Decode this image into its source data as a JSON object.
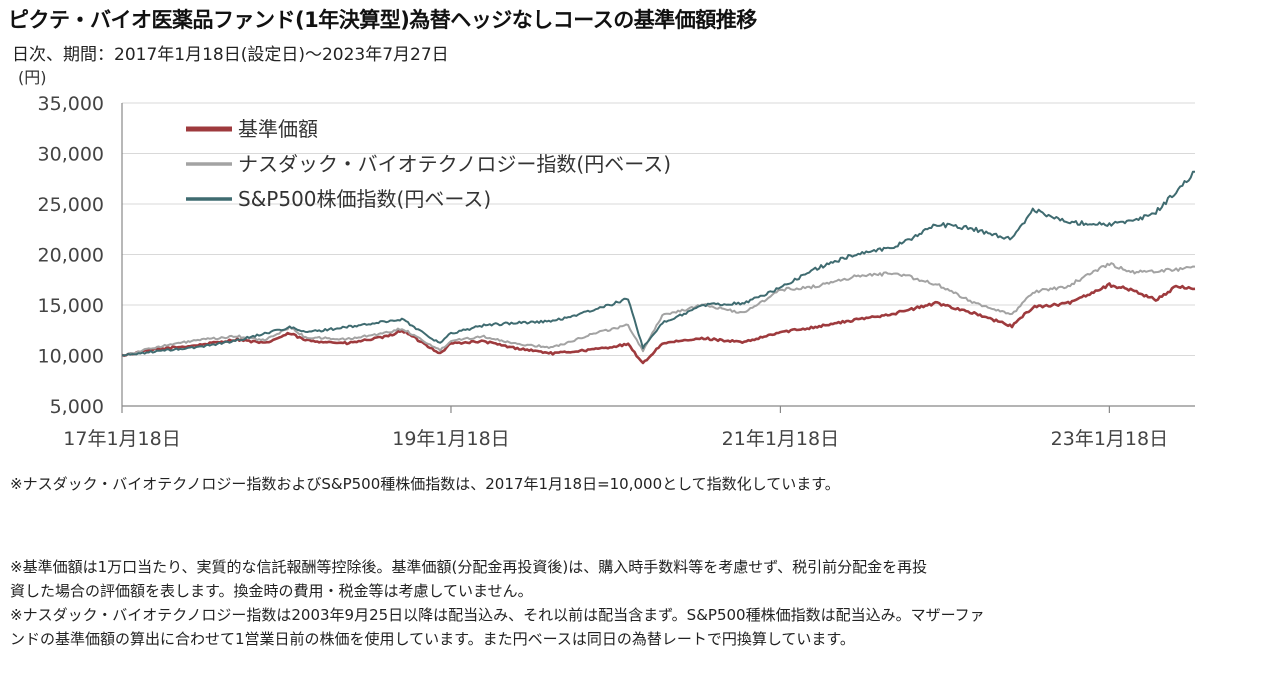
{
  "chart_data": {
    "type": "line",
    "title": "ピクテ・バイオ医薬品ファンド(1年決算型)為替ヘッジなしコースの基準価額推移",
    "subtitle": "日次、期間：2017年1月18日(設定日)～2023年7月27日",
    "ylabel": "(円)",
    "ylim": [
      5000,
      35000
    ],
    "xlim": [
      "2017-01-18",
      "2023-07-27"
    ],
    "yticks": [
      {
        "value": 5000,
        "label": "5,000"
      },
      {
        "value": 10000,
        "label": "10,000"
      },
      {
        "value": 15000,
        "label": "15,000"
      },
      {
        "value": 20000,
        "label": "20,000"
      },
      {
        "value": 25000,
        "label": "25,000"
      },
      {
        "value": 30000,
        "label": "30,000"
      },
      {
        "value": 35000,
        "label": "35,000"
      }
    ],
    "xticks": [
      {
        "date": "2017-01-18",
        "label": "17年1月18日"
      },
      {
        "date": "2019-01-18",
        "label": "19年1月18日"
      },
      {
        "date": "2021-01-18",
        "label": "21年1月18日"
      },
      {
        "date": "2023-01-18",
        "label": "23年1月18日"
      }
    ],
    "grid": "horizontal",
    "legend_position": "top-left",
    "series": [
      {
        "name": "基準価額",
        "color": "#9e3a3d",
        "points": [
          [
            "2017-01-18",
            10000
          ],
          [
            "2017-04-01",
            10600
          ],
          [
            "2017-07-01",
            11000
          ],
          [
            "2017-10-01",
            11600
          ],
          [
            "2017-12-01",
            11200
          ],
          [
            "2018-01-25",
            12200
          ],
          [
            "2018-03-01",
            11500
          ],
          [
            "2018-06-01",
            11200
          ],
          [
            "2018-09-01",
            11900
          ],
          [
            "2018-10-01",
            12500
          ],
          [
            "2018-12-25",
            10200
          ],
          [
            "2019-01-18",
            11200
          ],
          [
            "2019-04-01",
            11400
          ],
          [
            "2019-06-01",
            10800
          ],
          [
            "2019-09-01",
            10200
          ],
          [
            "2019-12-01",
            10600
          ],
          [
            "2020-02-15",
            11100
          ],
          [
            "2020-03-19",
            9200
          ],
          [
            "2020-05-01",
            11200
          ],
          [
            "2020-08-01",
            11700
          ],
          [
            "2020-10-30",
            11300
          ],
          [
            "2021-01-18",
            12300
          ],
          [
            "2021-04-01",
            12800
          ],
          [
            "2021-07-01",
            13500
          ],
          [
            "2021-10-01",
            14200
          ],
          [
            "2022-01-01",
            15200
          ],
          [
            "2022-03-15",
            14300
          ],
          [
            "2022-06-16",
            12900
          ],
          [
            "2022-08-01",
            14800
          ],
          [
            "2022-10-14",
            15100
          ],
          [
            "2023-01-18",
            17000
          ],
          [
            "2023-03-15",
            16400
          ],
          [
            "2023-05-01",
            15500
          ],
          [
            "2023-06-15",
            16800
          ],
          [
            "2023-07-27",
            16600
          ]
        ]
      },
      {
        "name": "ナスダック・バイオテクノロジー指数(円ベース)",
        "color": "#a3a3a3",
        "points": [
          [
            "2017-01-18",
            10000
          ],
          [
            "2017-04-01",
            10800
          ],
          [
            "2017-07-01",
            11500
          ],
          [
            "2017-10-01",
            11900
          ],
          [
            "2017-12-01",
            11500
          ],
          [
            "2018-01-25",
            12800
          ],
          [
            "2018-03-01",
            11800
          ],
          [
            "2018-06-01",
            11600
          ],
          [
            "2018-09-01",
            12300
          ],
          [
            "2018-10-01",
            12700
          ],
          [
            "2018-12-25",
            10500
          ],
          [
            "2019-01-18",
            11500
          ],
          [
            "2019-04-01",
            11900
          ],
          [
            "2019-06-01",
            11200
          ],
          [
            "2019-09-01",
            10800
          ],
          [
            "2019-12-01",
            12200
          ],
          [
            "2020-02-15",
            13000
          ],
          [
            "2020-03-19",
            10500
          ],
          [
            "2020-05-01",
            14000
          ],
          [
            "2020-08-01",
            15000
          ],
          [
            "2020-10-30",
            14200
          ],
          [
            "2021-01-18",
            16500
          ],
          [
            "2021-04-01",
            16800
          ],
          [
            "2021-07-01",
            17800
          ],
          [
            "2021-10-01",
            18200
          ],
          [
            "2022-01-01",
            17000
          ],
          [
            "2022-03-15",
            15400
          ],
          [
            "2022-06-16",
            14000
          ],
          [
            "2022-08-01",
            16300
          ],
          [
            "2022-10-14",
            16800
          ],
          [
            "2023-01-18",
            19100
          ],
          [
            "2023-03-15",
            18200
          ],
          [
            "2023-05-01",
            18400
          ],
          [
            "2023-06-15",
            18500
          ],
          [
            "2023-07-27",
            18800
          ]
        ]
      },
      {
        "name": "S&P500株価指数(円ベース)",
        "color": "#3f6b70",
        "points": [
          [
            "2017-01-18",
            10000
          ],
          [
            "2017-04-01",
            10400
          ],
          [
            "2017-07-01",
            10800
          ],
          [
            "2017-10-01",
            11500
          ],
          [
            "2017-12-01",
            12200
          ],
          [
            "2018-01-25",
            12800
          ],
          [
            "2018-03-01",
            12300
          ],
          [
            "2018-06-01",
            12800
          ],
          [
            "2018-09-01",
            13400
          ],
          [
            "2018-10-01",
            13600
          ],
          [
            "2018-12-25",
            11200
          ],
          [
            "2019-01-18",
            12200
          ],
          [
            "2019-04-01",
            13000
          ],
          [
            "2019-06-01",
            13200
          ],
          [
            "2019-09-01",
            13400
          ],
          [
            "2019-12-01",
            14500
          ],
          [
            "2020-02-15",
            15600
          ],
          [
            "2020-03-19",
            10800
          ],
          [
            "2020-05-01",
            13200
          ],
          [
            "2020-08-01",
            15000
          ],
          [
            "2020-10-30",
            15200
          ],
          [
            "2021-01-18",
            16700
          ],
          [
            "2021-04-01",
            18500
          ],
          [
            "2021-07-01",
            20000
          ],
          [
            "2021-10-01",
            20800
          ],
          [
            "2022-01-01",
            23000
          ],
          [
            "2022-03-15",
            22600
          ],
          [
            "2022-06-16",
            21500
          ],
          [
            "2022-08-01",
            24500
          ],
          [
            "2022-10-14",
            23200
          ],
          [
            "2023-01-18",
            23000
          ],
          [
            "2023-03-15",
            23300
          ],
          [
            "2023-05-01",
            24200
          ],
          [
            "2023-06-15",
            26200
          ],
          [
            "2023-07-27",
            28200
          ]
        ]
      }
    ]
  },
  "notes": {
    "note1": "※ナスダック・バイオテクノロジー指数およびS&P500種株価指数は、2017年1月18日=10,000として指数化しています。",
    "note2": "※基準価額は1万口当たり、実質的な信託報酬等控除後。基準価額(分配金再投資後)は、購入時手数料等を考慮せず、税引前分配金を再投",
    "note3": "資した場合の評価額を表します。換金時の費用・税金等は考慮していません。",
    "note4": "※ナスダック・バイオテクノロジー指数は2003年9月25日以降は配当込み、それ以前は配当含まず。S&P500種株価指数は配当込み。マザーファ",
    "note5": "ンドの基準価額の算出に合わせて1営業日前の株価を使用しています。また円ベースは同日の為替レートで円換算しています。"
  }
}
